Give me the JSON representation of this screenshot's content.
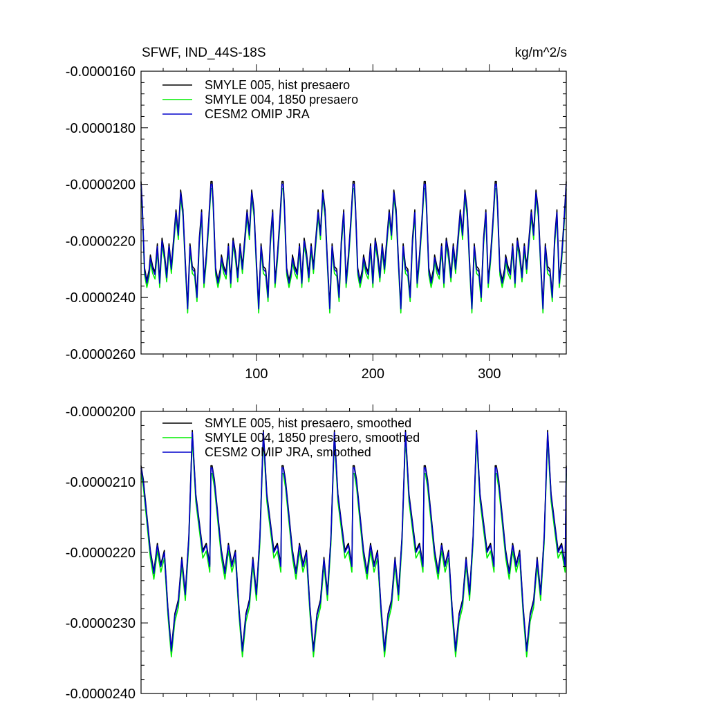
{
  "chart_data": [
    {
      "type": "line",
      "title_left": "SFWF, IND_44S-18S",
      "title_right": "kg/m^2/s",
      "xlabel": "",
      "ylabel": "",
      "xlim": [
        1,
        366
      ],
      "ylim": [
        -2.6e-05,
        -1.6e-05
      ],
      "y_ticks": [
        -1.6e-05,
        -1.8e-05,
        -2e-05,
        -2.2e-05,
        -2.4e-05,
        -2.6e-05
      ],
      "y_tick_labels": [
        "-0.0000160",
        "-0.0000180",
        "-0.0000200",
        "-0.0000220",
        "-0.0000240",
        "-0.0000260"
      ],
      "x_ticks": [
        100,
        200,
        300
      ],
      "x_tick_labels": [
        "100",
        "200",
        "300"
      ],
      "legend": [
        "SMYLE 005, hist presaero",
        "SMYLE 004, 1850 presaero",
        "CESM2 OMIP JRA"
      ],
      "series": [
        {
          "name": "SMYLE 005, hist presaero",
          "color": "#000000",
          "offset": 1e-07,
          "values": []
        },
        {
          "name": "SMYLE 004, 1850 presaero",
          "color": "#00ee00",
          "offset": -1.5e-07,
          "values": []
        },
        {
          "name": "CESM2 OMIP JRA",
          "color": "#0000cc",
          "offset": 0.0,
          "values": []
        }
      ],
      "x_start": 1,
      "period": 61,
      "cycle_anchor_x": [
        0,
        1,
        3,
        5,
        7,
        8,
        10,
        12,
        14,
        16,
        18,
        20,
        22,
        24,
        26,
        28,
        30,
        32,
        34,
        36,
        38,
        40,
        42,
        44,
        46,
        48,
        50,
        52,
        54,
        56,
        58,
        60
      ],
      "cycle_anchor_y": [
        -2e-05,
        -2.075e-05,
        -2.305e-05,
        -2.35e-05,
        -2.31e-05,
        -2.26e-05,
        -2.3e-05,
        -2.32e-05,
        -2.22e-05,
        -2.35e-05,
        -2.2e-05,
        -2.25e-05,
        -2.33e-05,
        -2.22e-05,
        -2.3e-05,
        -2.2e-05,
        -2.1e-05,
        -2.18e-05,
        -2.03e-05,
        -2.1e-05,
        -2.28e-05,
        -2.44e-05,
        -2.22e-05,
        -2.3e-05,
        -2.31e-05,
        -2.4e-05,
        -2.2e-05,
        -2.1e-05,
        -2.35e-05,
        -2.26e-05,
        -2.14e-05,
        -2e-05
      ]
    },
    {
      "type": "line",
      "xlim": [
        1,
        366
      ],
      "ylim": [
        -2.4e-05,
        -2e-05
      ],
      "y_ticks": [
        -2e-05,
        -2.1e-05,
        -2.2e-05,
        -2.3e-05,
        -2.4e-05
      ],
      "y_tick_labels": [
        "-0.0000200",
        "-0.0000210",
        "-0.0000220",
        "-0.0000230",
        "-0.0000240"
      ],
      "x_ticks": [
        100,
        200,
        300
      ],
      "legend": [
        "SMYLE 005, hist presaero, smoothed",
        "SMYLE 004, 1850 presaero, smoothed",
        "CESM2 OMIP JRA, smoothed"
      ],
      "series": [
        {
          "name": "SMYLE 005, hist presaero, smoothed",
          "color": "#000000",
          "offset": 3e-08,
          "values": []
        },
        {
          "name": "SMYLE 004, 1850 presaero, smoothed",
          "color": "#00ee00",
          "offset": -8e-08,
          "values": []
        },
        {
          "name": "CESM2 OMIP JRA, smoothed",
          "color": "#0000cc",
          "offset": 0.0,
          "values": []
        }
      ],
      "x_start": 1,
      "period": 61,
      "cycle_anchor_x": [
        0,
        2,
        5,
        8,
        11,
        14,
        17,
        20,
        23,
        26,
        29,
        32,
        35,
        38,
        41,
        44,
        47,
        50,
        53,
        56,
        59,
        60
      ],
      "cycle_anchor_y": [
        -2.08e-05,
        -2.1e-05,
        -2.15e-05,
        -2.2e-05,
        -2.23e-05,
        -2.19e-05,
        -2.22e-05,
        -2.2e-05,
        -2.28e-05,
        -2.34e-05,
        -2.29e-05,
        -2.27e-05,
        -2.21e-05,
        -2.26e-05,
        -2.18e-05,
        -2.03e-05,
        -2.12e-05,
        -2.16e-05,
        -2.2e-05,
        -2.19e-05,
        -2.22e-05,
        -2.08e-05
      ]
    }
  ]
}
